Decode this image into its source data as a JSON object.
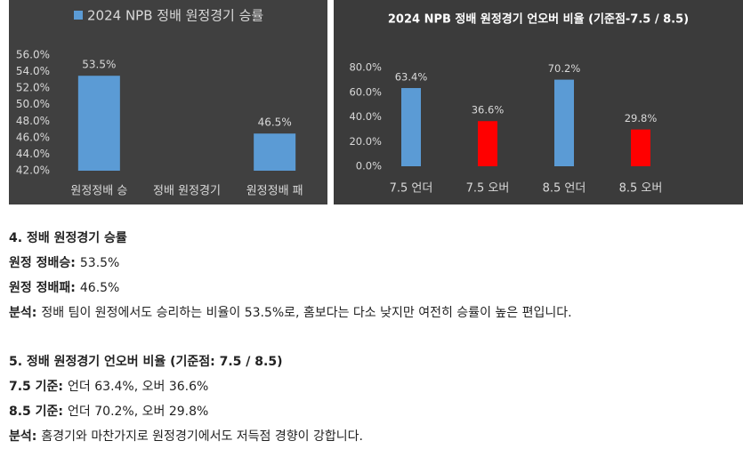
{
  "chart_data": [
    {
      "type": "bar",
      "series": [
        {
          "name": "2024 NPB 정배 원정경기 승률",
          "color": "#5b9bd5",
          "values": [
            53.5,
            null,
            46.5
          ]
        }
      ],
      "value_labels": [
        "53.5%",
        null,
        "46.5%"
      ],
      "categories": [
        "원정정배 승",
        "정배 원정경기",
        "원정정배 패"
      ],
      "ylim": [
        42,
        56
      ],
      "yticks": [
        {
          "value": 42,
          "label": "42.0%"
        },
        {
          "value": 44,
          "label": "44.0%"
        },
        {
          "value": 46,
          "label": "46.0%"
        },
        {
          "value": 48,
          "label": "48.0%"
        },
        {
          "value": 50,
          "label": "50.0%"
        },
        {
          "value": 52,
          "label": "52.0%"
        },
        {
          "value": 54,
          "label": "54.0%"
        },
        {
          "value": 56,
          "label": "56.0%"
        }
      ],
      "legend": "top"
    },
    {
      "type": "bar",
      "title": "2024 NPB 정배 원정경기 언오버 비율 (기준점-7.5 / 8.5)",
      "categories": [
        "7.5 언더",
        "7.5 오버",
        "8.5 언더",
        "8.5 오버"
      ],
      "values": [
        63.4,
        36.6,
        70.2,
        29.8
      ],
      "value_labels": [
        "63.4%",
        "36.6%",
        "70.2%",
        "29.8%"
      ],
      "colors": [
        "#5b9bd5",
        "#ff0000",
        "#5b9bd5",
        "#ff0000"
      ],
      "ylim": [
        0,
        80
      ],
      "yticks": [
        {
          "value": 0,
          "label": "0.0%"
        },
        {
          "value": 20,
          "label": "20.0%"
        },
        {
          "value": 40,
          "label": "40.0%"
        },
        {
          "value": 60,
          "label": "60.0%"
        },
        {
          "value": 80,
          "label": "80.0%"
        }
      ]
    }
  ],
  "document": {
    "sections": [
      {
        "heading": "4. 정배 원정경기 승률",
        "lines": [
          {
            "label": "원정 정배승:",
            "text": "53.5%"
          },
          {
            "label": "원정 정배패:",
            "text": "46.5%"
          },
          {
            "label": "분석:",
            "text": "정배 팀이 원정에서도 승리하는 비율이 53.5%로, 홈보다는 다소 낮지만 여전히 승률이 높은 편입니다."
          }
        ]
      },
      {
        "heading": "5. 정배 원정경기 언오버 비율 (기준점: 7.5 / 8.5)",
        "lines": [
          {
            "label": "7.5 기준:",
            "text": "언더 63.4%, 오버 36.6%"
          },
          {
            "label": "8.5 기준:",
            "text": "언더 70.2%, 오버 29.8%"
          },
          {
            "label": "분석:",
            "text": "홈경기와 마찬가지로 원정경기에서도 저득점 경향이 강합니다."
          }
        ]
      }
    ]
  }
}
